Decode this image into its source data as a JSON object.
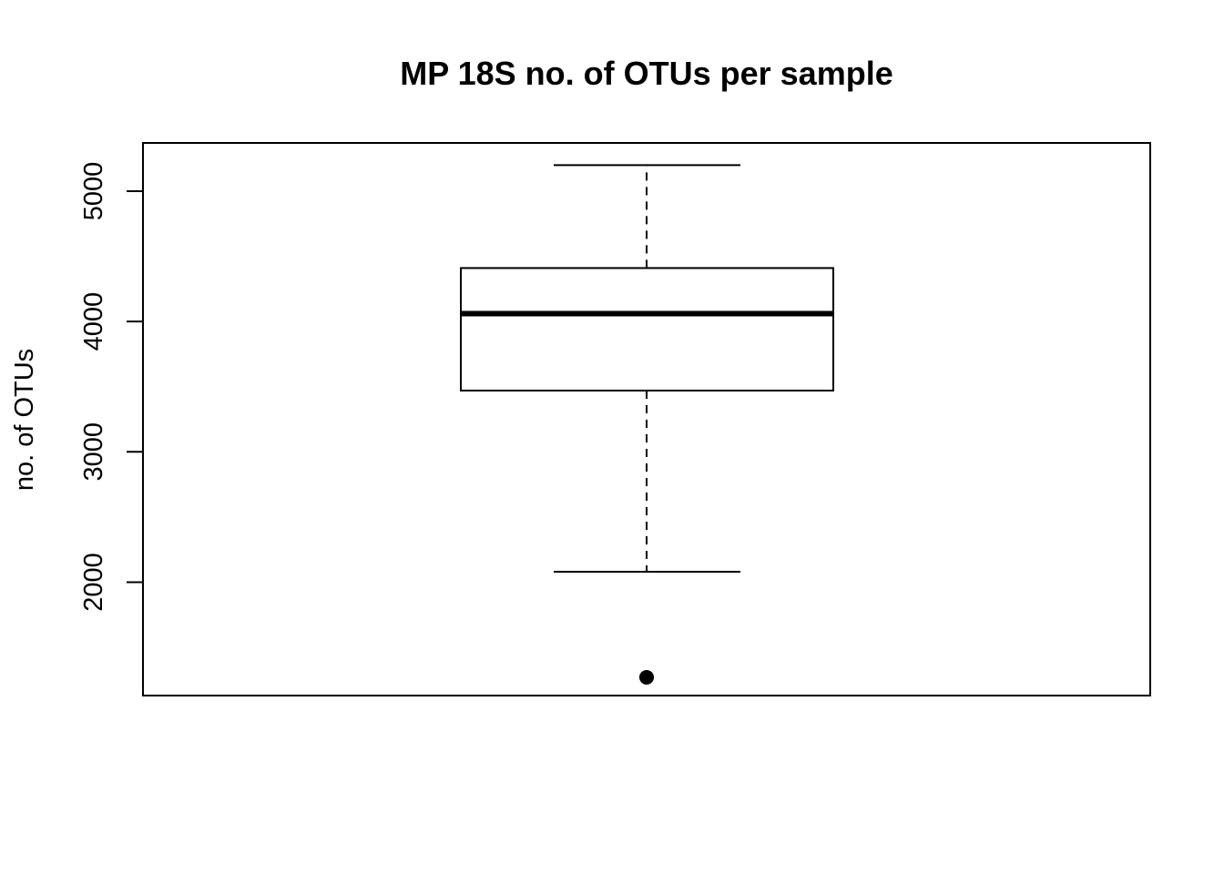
{
  "chart_data": {
    "type": "box",
    "title": "MP 18S no. of OTUs per sample",
    "xlabel": "",
    "ylabel": "no. of OTUs",
    "ylim": [
      1130,
      5370
    ],
    "yticks": [
      2000,
      3000,
      4000,
      5000
    ],
    "ytick_labels": [
      "2000",
      "3000",
      "4000",
      "5000"
    ],
    "grid": false,
    "box": {
      "lower_whisker": 2080,
      "q1": 3470,
      "median": 4060,
      "q3": 4410,
      "upper_whisker": 5200,
      "outliers": [
        1270
      ]
    }
  }
}
